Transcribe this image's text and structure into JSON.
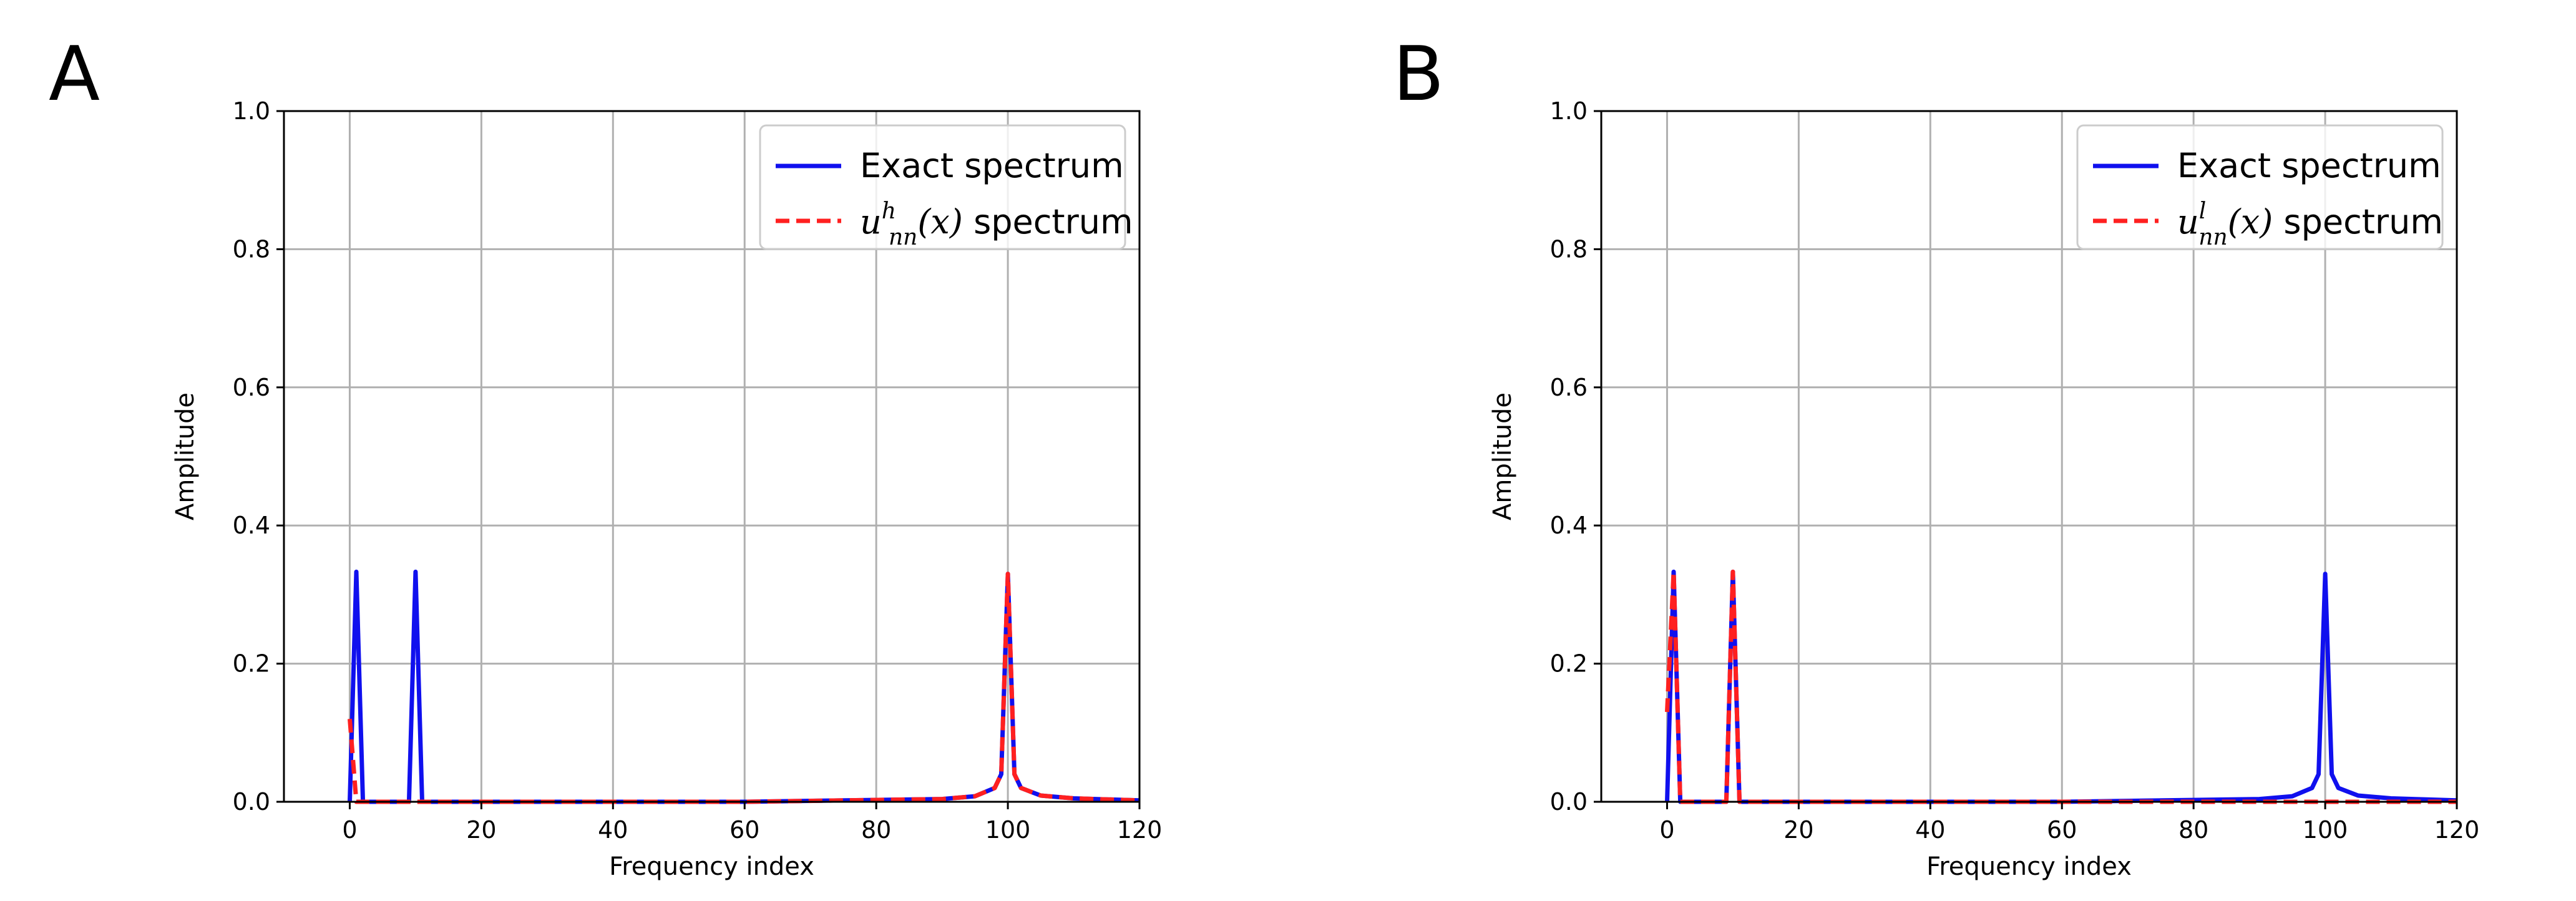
{
  "panels": {
    "a": {
      "letter": "A"
    },
    "b": {
      "letter": "B"
    }
  },
  "chart_data": [
    {
      "type": "line",
      "panel": "A",
      "xlabel": "Frequency index",
      "ylabel": "Amplitude",
      "xlim": [
        -10,
        120
      ],
      "ylim": [
        0,
        1.0
      ],
      "xticks": [
        0,
        20,
        40,
        60,
        80,
        100,
        120
      ],
      "yticks": [
        0.0,
        0.2,
        0.4,
        0.6,
        0.8,
        1.0
      ],
      "grid": true,
      "legend_position": "top-right",
      "series": [
        {
          "name": "Exact spectrum",
          "color": "#1010ee",
          "style": "solid",
          "x": [
            0,
            1,
            2,
            8,
            9,
            10,
            11,
            12,
            20,
            60,
            90,
            95,
            98,
            99,
            100,
            101,
            102,
            105,
            110,
            120
          ],
          "y": [
            0.0,
            0.333,
            0.0,
            0.0,
            0.0,
            0.333,
            0.0,
            0.0,
            0.0,
            0.0,
            0.004,
            0.008,
            0.02,
            0.04,
            0.33,
            0.04,
            0.02,
            0.009,
            0.005,
            0.002
          ]
        },
        {
          "name": "u_nn^h(x) spectrum",
          "color": "#ff2020",
          "style": "dashed",
          "x": [
            0,
            1,
            2,
            10,
            20,
            60,
            90,
            95,
            98,
            99,
            100,
            101,
            102,
            105,
            110,
            120
          ],
          "y": [
            0.12,
            0.0,
            0.0,
            0.0,
            0.0,
            0.0,
            0.004,
            0.008,
            0.02,
            0.04,
            0.33,
            0.04,
            0.02,
            0.009,
            0.005,
            0.002
          ]
        }
      ],
      "legend": {
        "exact_label": "Exact spectrum",
        "nn_var": "u",
        "nn_sub": "nn",
        "nn_sup": "h",
        "nn_arg": "(x)",
        "nn_rest": " spectrum"
      }
    },
    {
      "type": "line",
      "panel": "B",
      "xlabel": "Frequency index",
      "ylabel": "Amplitude",
      "xlim": [
        -10,
        120
      ],
      "ylim": [
        0,
        1.0
      ],
      "xticks": [
        0,
        20,
        40,
        60,
        80,
        100,
        120
      ],
      "yticks": [
        0.0,
        0.2,
        0.4,
        0.6,
        0.8,
        1.0
      ],
      "grid": true,
      "legend_position": "top-right",
      "series": [
        {
          "name": "Exact spectrum",
          "color": "#1010ee",
          "style": "solid",
          "x": [
            0,
            1,
            2,
            8,
            9,
            10,
            11,
            12,
            20,
            60,
            90,
            95,
            98,
            99,
            100,
            101,
            102,
            105,
            110,
            120
          ],
          "y": [
            0.0,
            0.333,
            0.0,
            0.0,
            0.0,
            0.333,
            0.0,
            0.0,
            0.0,
            0.0,
            0.004,
            0.008,
            0.02,
            0.04,
            0.33,
            0.04,
            0.02,
            0.009,
            0.005,
            0.002
          ]
        },
        {
          "name": "u_nn^l(x) spectrum",
          "color": "#ff2020",
          "style": "dashed",
          "x": [
            0,
            1,
            2,
            8,
            9,
            10,
            11,
            12,
            20,
            120
          ],
          "y": [
            0.13,
            0.333,
            0.0,
            0.0,
            0.0,
            0.333,
            0.0,
            0.0,
            0.0,
            0.0
          ]
        }
      ],
      "legend": {
        "exact_label": "Exact spectrum",
        "nn_var": "u",
        "nn_sub": "nn",
        "nn_sup": "l",
        "nn_arg": "(x)",
        "nn_rest": " spectrum"
      }
    }
  ]
}
